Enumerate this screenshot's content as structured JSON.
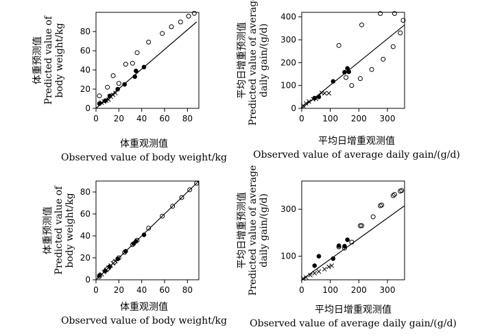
{
  "chart_data": [
    {
      "type": "scatter",
      "ylabel_lines": [
        "体重预测值",
        "Predicted value of",
        "body weight/kg"
      ],
      "xlabel_lines": [
        "体重观测值",
        "Observed value of body weight/kg"
      ],
      "xlim": [
        0,
        90
      ],
      "ylim": [
        0,
        100
      ],
      "xticks": [
        0,
        20,
        40,
        60,
        80
      ],
      "yticks": [
        0,
        20,
        40,
        60,
        80
      ],
      "reference_line": [
        [
          0,
          0
        ],
        [
          88,
          90
        ]
      ],
      "series": [
        {
          "marker": "circle-open",
          "points": [
            [
              3,
              13
            ],
            [
              10,
              22
            ],
            [
              15,
              34
            ],
            [
              20,
              26
            ],
            [
              26,
              46
            ],
            [
              32,
              47
            ],
            [
              36,
              58
            ],
            [
              46,
              69
            ],
            [
              58,
              78
            ],
            [
              66,
              85
            ],
            [
              74,
              90
            ],
            [
              81,
              96
            ],
            [
              86,
              99
            ]
          ]
        },
        {
          "marker": "circle-filled",
          "points": [
            [
              3,
              5
            ],
            [
              8,
              8
            ],
            [
              12,
              13
            ],
            [
              19,
              20
            ],
            [
              25,
              25
            ],
            [
              34,
              33
            ],
            [
              35,
              39
            ],
            [
              42,
              43
            ]
          ]
        },
        {
          "marker": "cross",
          "points": [
            [
              5,
              6
            ],
            [
              7,
              7
            ],
            [
              9,
              8
            ],
            [
              11,
              9
            ],
            [
              13,
              12
            ],
            [
              15,
              14
            ],
            [
              17,
              16
            ]
          ]
        }
      ]
    },
    {
      "type": "scatter",
      "ylabel_lines": [
        "平均日增重预测值",
        "Predicted value of average",
        "daily gain/(g/d)"
      ],
      "xlabel_lines": [
        "平均日增重观测值",
        "Observed value of average daily gain/(g/d)"
      ],
      "xlim": [
        0,
        360
      ],
      "ylim": [
        0,
        420
      ],
      "xticks": [
        0,
        100,
        200,
        300
      ],
      "yticks": [
        0,
        100,
        200,
        300,
        400
      ],
      "reference_line": [
        [
          0,
          0
        ],
        [
          360,
          365
        ]
      ],
      "series": [
        {
          "marker": "circle-open",
          "points": [
            [
              130,
              275
            ],
            [
              155,
              135
            ],
            [
              175,
              100
            ],
            [
              205,
              130
            ],
            [
              210,
              365
            ],
            [
              245,
              170
            ],
            [
              275,
              415
            ],
            [
              285,
              215
            ],
            [
              320,
              270
            ],
            [
              325,
              415
            ],
            [
              345,
              330
            ],
            [
              355,
              385
            ]
          ]
        },
        {
          "marker": "circle-filled",
          "points": [
            [
              45,
              45
            ],
            [
              60,
              50
            ],
            [
              110,
              118
            ],
            [
              150,
              158
            ],
            [
              160,
              175
            ],
            [
              165,
              160
            ]
          ]
        },
        {
          "marker": "cross",
          "points": [
            [
              5,
              12
            ],
            [
              15,
              22
            ],
            [
              25,
              30
            ],
            [
              40,
              40
            ],
            [
              50,
              42
            ],
            [
              70,
              68
            ],
            [
              80,
              66
            ],
            [
              95,
              66
            ]
          ]
        }
      ]
    },
    {
      "type": "scatter",
      "ylabel_lines": [
        "体重预测值",
        "Predicted value of",
        "body weight/kg"
      ],
      "xlabel_lines": [
        "体重观测值",
        "Observed value of body weight/kg"
      ],
      "xlim": [
        0,
        90
      ],
      "ylim": [
        0,
        90
      ],
      "xticks": [
        0,
        20,
        40,
        60,
        80
      ],
      "yticks": [
        0,
        20,
        40,
        60,
        80
      ],
      "reference_line": [
        [
          0,
          0
        ],
        [
          90,
          90
        ]
      ],
      "series": [
        {
          "marker": "circle-open",
          "points": [
            [
              3,
              3
            ],
            [
              10,
              10
            ],
            [
              16,
              16
            ],
            [
              20,
              20
            ],
            [
              25,
              25
            ],
            [
              32,
              32
            ],
            [
              36,
              36
            ],
            [
              46,
              47
            ],
            [
              58,
              58
            ],
            [
              67,
              67
            ],
            [
              75,
              75
            ],
            [
              82,
              82
            ],
            [
              88,
              88
            ]
          ]
        },
        {
          "marker": "circle-filled",
          "points": [
            [
              3,
              4
            ],
            [
              8,
              8
            ],
            [
              12,
              12
            ],
            [
              19,
              19
            ],
            [
              26,
              26
            ],
            [
              33,
              33
            ],
            [
              35,
              35
            ],
            [
              42,
              41
            ]
          ]
        },
        {
          "marker": "cross",
          "points": [
            [
              5,
              5
            ],
            [
              7,
              7
            ],
            [
              9,
              9
            ],
            [
              11,
              11
            ],
            [
              13,
              13
            ],
            [
              15,
              15
            ],
            [
              17,
              17
            ]
          ]
        }
      ]
    },
    {
      "type": "scatter",
      "ylabel_lines": [
        "平均日增重预测值",
        "Predicted value of average",
        "daily gain/(g/d)"
      ],
      "xlabel_lines": [
        "平均日增重观测值",
        "Observed value of average daily gain/(g/d)"
      ],
      "xlim": [
        0,
        360
      ],
      "ylim": [
        0,
        420
      ],
      "xticks": [
        0,
        100,
        200,
        300
      ],
      "yticks": [
        100,
        300
      ],
      "reference_line": [
        [
          0,
          0
        ],
        [
          360,
          315
        ]
      ],
      "series": [
        {
          "marker": "circle-open",
          "points": [
            [
              130,
              140
            ],
            [
              150,
              135
            ],
            [
              175,
              160
            ],
            [
              205,
              230
            ],
            [
              210,
              230
            ],
            [
              250,
              268
            ],
            [
              275,
              315
            ],
            [
              280,
              318
            ],
            [
              320,
              358
            ],
            [
              325,
              363
            ],
            [
              345,
              377
            ],
            [
              350,
              380
            ]
          ]
        },
        {
          "marker": "circle-filled",
          "points": [
            [
              45,
              60
            ],
            [
              60,
              100
            ],
            [
              110,
              90
            ],
            [
              130,
              145
            ],
            [
              150,
              143
            ],
            [
              160,
              170
            ]
          ]
        },
        {
          "marker": "cross",
          "points": [
            [
              5,
              5
            ],
            [
              15,
              10
            ],
            [
              30,
              20
            ],
            [
              45,
              28
            ],
            [
              60,
              35
            ],
            [
              80,
              45
            ],
            [
              95,
              55
            ],
            [
              105,
              60
            ]
          ]
        }
      ]
    }
  ]
}
